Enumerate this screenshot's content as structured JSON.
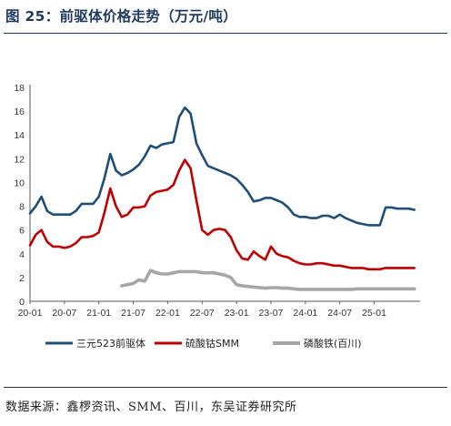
{
  "header": {
    "figure_title": "图 25：前驱体价格走势（万元/吨）"
  },
  "footer": {
    "source": "数据来源：鑫椤资讯、SMM、百川，东吴证券研究所"
  },
  "chart_data": {
    "type": "line",
    "title": "前驱体价格走势（万元/吨）",
    "xlabel": "",
    "ylabel": "",
    "x_start": "2020-01",
    "x_end": "2025-09",
    "x_ticks": [
      "20-01",
      "20-07",
      "21-01",
      "21-07",
      "22-01",
      "22-07",
      "23-01",
      "23-07",
      "24-01",
      "24-07",
      "25-01"
    ],
    "ylim": [
      0,
      18
    ],
    "y_ticks": [
      0,
      2,
      4,
      6,
      8,
      10,
      12,
      14,
      16,
      18
    ],
    "grid": false,
    "legend": "bottom",
    "colors": {
      "s1": "#1f4e79",
      "s2": "#c00000",
      "s3": "#a6a6a6"
    },
    "series": [
      {
        "name": "三元523前驱体",
        "color": "#1f4e79",
        "points": [
          [
            "2020-01",
            7.4
          ],
          [
            "2020-02",
            8.0
          ],
          [
            "2020-03",
            8.8
          ],
          [
            "2020-04",
            7.6
          ],
          [
            "2020-05",
            7.3
          ],
          [
            "2020-06",
            7.3
          ],
          [
            "2020-07",
            7.3
          ],
          [
            "2020-08",
            7.3
          ],
          [
            "2020-09",
            7.6
          ],
          [
            "2020-10",
            8.2
          ],
          [
            "2020-11",
            8.2
          ],
          [
            "2020-12",
            8.2
          ],
          [
            "2021-01",
            8.8
          ],
          [
            "2021-02",
            10.4
          ],
          [
            "2021-03",
            12.4
          ],
          [
            "2021-04",
            11.0
          ],
          [
            "2021-05",
            10.6
          ],
          [
            "2021-06",
            10.8
          ],
          [
            "2021-07",
            11.1
          ],
          [
            "2021-08",
            11.5
          ],
          [
            "2021-09",
            12.2
          ],
          [
            "2021-10",
            13.1
          ],
          [
            "2021-11",
            12.9
          ],
          [
            "2021-12",
            13.2
          ],
          [
            "2022-01",
            13.3
          ],
          [
            "2022-02",
            13.4
          ],
          [
            "2022-03",
            15.5
          ],
          [
            "2022-04",
            16.3
          ],
          [
            "2022-05",
            15.8
          ],
          [
            "2022-06",
            13.3
          ],
          [
            "2022-07",
            12.3
          ],
          [
            "2022-08",
            11.4
          ],
          [
            "2022-09",
            11.2
          ],
          [
            "2022-10",
            11.0
          ],
          [
            "2022-11",
            10.8
          ],
          [
            "2022-12",
            10.6
          ],
          [
            "2023-01",
            10.3
          ],
          [
            "2023-02",
            9.8
          ],
          [
            "2023-03",
            9.2
          ],
          [
            "2023-04",
            8.4
          ],
          [
            "2023-05",
            8.5
          ],
          [
            "2023-06",
            8.7
          ],
          [
            "2023-07",
            8.7
          ],
          [
            "2023-08",
            8.5
          ],
          [
            "2023-09",
            8.3
          ],
          [
            "2023-10",
            7.9
          ],
          [
            "2023-11",
            7.3
          ],
          [
            "2023-12",
            7.1
          ],
          [
            "2024-01",
            7.1
          ],
          [
            "2024-02",
            7.0
          ],
          [
            "2024-03",
            7.0
          ],
          [
            "2024-04",
            7.2
          ],
          [
            "2024-05",
            7.2
          ],
          [
            "2024-06",
            7.0
          ],
          [
            "2024-07",
            7.3
          ],
          [
            "2024-08",
            7.0
          ],
          [
            "2024-09",
            6.8
          ],
          [
            "2024-10",
            6.6
          ],
          [
            "2024-11",
            6.5
          ],
          [
            "2024-12",
            6.4
          ],
          [
            "2025-01",
            6.4
          ],
          [
            "2025-02",
            6.4
          ],
          [
            "2025-03",
            7.9
          ],
          [
            "2025-04",
            7.9
          ],
          [
            "2025-05",
            7.8
          ],
          [
            "2025-06",
            7.8
          ],
          [
            "2025-07",
            7.8
          ],
          [
            "2025-08",
            7.7
          ]
        ]
      },
      {
        "name": "硫酸钴SMM",
        "color": "#c00000",
        "points": [
          [
            "2020-01",
            4.7
          ],
          [
            "2020-02",
            5.6
          ],
          [
            "2020-03",
            6.0
          ],
          [
            "2020-04",
            5.0
          ],
          [
            "2020-05",
            4.6
          ],
          [
            "2020-06",
            4.6
          ],
          [
            "2020-07",
            4.5
          ],
          [
            "2020-08",
            4.6
          ],
          [
            "2020-09",
            4.9
          ],
          [
            "2020-10",
            5.4
          ],
          [
            "2020-11",
            5.4
          ],
          [
            "2020-12",
            5.5
          ],
          [
            "2021-01",
            5.8
          ],
          [
            "2021-02",
            7.5
          ],
          [
            "2021-03",
            9.5
          ],
          [
            "2021-04",
            8.0
          ],
          [
            "2021-05",
            7.1
          ],
          [
            "2021-06",
            7.3
          ],
          [
            "2021-07",
            7.9
          ],
          [
            "2021-08",
            7.9
          ],
          [
            "2021-09",
            8.0
          ],
          [
            "2021-10",
            8.9
          ],
          [
            "2021-11",
            9.2
          ],
          [
            "2021-12",
            9.3
          ],
          [
            "2022-01",
            9.4
          ],
          [
            "2022-02",
            9.8
          ],
          [
            "2022-03",
            11.0
          ],
          [
            "2022-04",
            11.9
          ],
          [
            "2022-05",
            11.2
          ],
          [
            "2022-06",
            8.5
          ],
          [
            "2022-07",
            6.0
          ],
          [
            "2022-08",
            5.6
          ],
          [
            "2022-09",
            6.0
          ],
          [
            "2022-10",
            6.1
          ],
          [
            "2022-11",
            6.0
          ],
          [
            "2022-12",
            5.4
          ],
          [
            "2023-01",
            4.3
          ],
          [
            "2023-02",
            3.6
          ],
          [
            "2023-03",
            3.5
          ],
          [
            "2023-04",
            4.2
          ],
          [
            "2023-05",
            3.8
          ],
          [
            "2023-06",
            3.5
          ],
          [
            "2023-07",
            4.6
          ],
          [
            "2023-08",
            4.0
          ],
          [
            "2023-09",
            3.8
          ],
          [
            "2023-10",
            3.7
          ],
          [
            "2023-11",
            3.4
          ],
          [
            "2023-12",
            3.2
          ],
          [
            "2024-01",
            3.1
          ],
          [
            "2024-02",
            3.1
          ],
          [
            "2024-03",
            3.2
          ],
          [
            "2024-04",
            3.2
          ],
          [
            "2024-05",
            3.1
          ],
          [
            "2024-06",
            3.0
          ],
          [
            "2024-07",
            3.0
          ],
          [
            "2024-08",
            2.9
          ],
          [
            "2024-09",
            2.8
          ],
          [
            "2024-10",
            2.8
          ],
          [
            "2024-11",
            2.8
          ],
          [
            "2024-12",
            2.7
          ],
          [
            "2025-01",
            2.7
          ],
          [
            "2025-02",
            2.7
          ],
          [
            "2025-03",
            2.8
          ],
          [
            "2025-04",
            2.8
          ],
          [
            "2025-05",
            2.8
          ],
          [
            "2025-06",
            2.8
          ],
          [
            "2025-07",
            2.8
          ],
          [
            "2025-08",
            2.8
          ]
        ]
      },
      {
        "name": "磷酸铁(百川)",
        "color": "#a6a6a6",
        "points": [
          [
            "2021-05",
            1.3
          ],
          [
            "2021-06",
            1.4
          ],
          [
            "2021-07",
            1.5
          ],
          [
            "2021-08",
            1.8
          ],
          [
            "2021-09",
            1.7
          ],
          [
            "2021-10",
            2.6
          ],
          [
            "2021-11",
            2.4
          ],
          [
            "2021-12",
            2.3
          ],
          [
            "2022-01",
            2.3
          ],
          [
            "2022-02",
            2.4
          ],
          [
            "2022-03",
            2.5
          ],
          [
            "2022-04",
            2.5
          ],
          [
            "2022-05",
            2.5
          ],
          [
            "2022-06",
            2.5
          ],
          [
            "2022-07",
            2.4
          ],
          [
            "2022-08",
            2.4
          ],
          [
            "2022-09",
            2.4
          ],
          [
            "2022-10",
            2.3
          ],
          [
            "2022-11",
            2.2
          ],
          [
            "2022-12",
            2.0
          ],
          [
            "2023-01",
            1.4
          ],
          [
            "2023-02",
            1.3
          ],
          [
            "2023-03",
            1.25
          ],
          [
            "2023-04",
            1.2
          ],
          [
            "2023-05",
            1.15
          ],
          [
            "2023-06",
            1.1
          ],
          [
            "2023-07",
            1.15
          ],
          [
            "2023-08",
            1.15
          ],
          [
            "2023-09",
            1.1
          ],
          [
            "2023-10",
            1.1
          ],
          [
            "2023-11",
            1.05
          ],
          [
            "2023-12",
            1.0
          ],
          [
            "2024-01",
            1.0
          ],
          [
            "2024-02",
            1.0
          ],
          [
            "2024-03",
            1.0
          ],
          [
            "2024-04",
            1.0
          ],
          [
            "2024-05",
            1.0
          ],
          [
            "2024-06",
            1.0
          ],
          [
            "2024-07",
            1.0
          ],
          [
            "2024-08",
            1.0
          ],
          [
            "2024-09",
            1.0
          ],
          [
            "2024-10",
            1.05
          ],
          [
            "2024-11",
            1.05
          ],
          [
            "2024-12",
            1.05
          ],
          [
            "2025-01",
            1.05
          ],
          [
            "2025-02",
            1.05
          ],
          [
            "2025-03",
            1.05
          ],
          [
            "2025-04",
            1.05
          ],
          [
            "2025-05",
            1.05
          ],
          [
            "2025-06",
            1.05
          ],
          [
            "2025-07",
            1.05
          ],
          [
            "2025-08",
            1.05
          ]
        ]
      }
    ]
  }
}
